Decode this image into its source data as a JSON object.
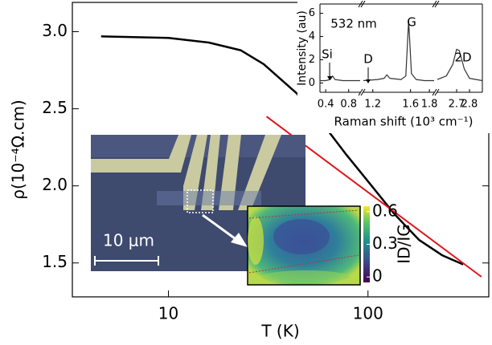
{
  "chart_data": {
    "type": "line",
    "y_label": "ρ(10⁻⁴Ω.cm)",
    "x_label": "T (K)",
    "xscale": "log",
    "xlim": [
      3.3,
      403
    ],
    "xticks": [
      10,
      100
    ],
    "ylim": [
      1.28,
      3.19
    ],
    "yticks": [
      {
        "value": 1.5,
        "label": "1.5"
      },
      {
        "value": 2,
        "label": "2.0"
      },
      2.5,
      {
        "value": 3,
        "label": "3.0"
      }
    ],
    "series": [
      {
        "color": "#000000",
        "x": [
          4.6,
          10,
          15.9,
          23,
          30,
          44,
          58,
          77,
          100,
          135,
          180,
          235,
          300
        ],
        "values": [
          2.97,
          2.96,
          2.93,
          2.88,
          2.79,
          2.6,
          2.42,
          2.21,
          2.03,
          1.82,
          1.65,
          1.55,
          1.49
        ]
      },
      {
        "color": "#e0141e",
        "x": [
          31,
          370
        ],
        "values": [
          2.45,
          1.41
        ]
      }
    ],
    "raman_inset": {
      "type": "line",
      "x_label": "Raman shift (10³ cm⁻¹)",
      "y_label": "Intensity (au)",
      "ylim": [
        -0.8,
        6.8
      ],
      "yticks": [
        0,
        2,
        4,
        6
      ],
      "color": "#333333",
      "segments": [
        {
          "xlim": [
            0.3,
            1.0
          ],
          "xticks": [
            0.4,
            0.8
          ],
          "x": [
            0.3,
            0.4,
            0.48,
            0.52,
            0.56,
            0.7,
            0.9,
            1.0
          ],
          "values": [
            0.2,
            0.2,
            0.3,
            0.6,
            0.3,
            0.2,
            0.2,
            0.2
          ]
        },
        {
          "xlim": [
            1.1,
            1.85
          ],
          "xticks": [
            1.2,
            1.6,
            1.8
          ],
          "x": [
            1.1,
            1.25,
            1.32,
            1.35,
            1.38,
            1.5,
            1.55,
            1.58,
            1.61,
            1.66,
            1.75,
            1.85
          ],
          "values": [
            0.2,
            0.3,
            0.4,
            0.7,
            0.4,
            0.3,
            0.6,
            5.4,
            0.8,
            0.3,
            0.2,
            0.2
          ]
        },
        {
          "xlim": [
            2.55,
            2.9
          ],
          "xticks": [
            2.7,
            2.8
          ],
          "x": [
            2.55,
            2.62,
            2.67,
            2.7,
            2.72,
            2.76,
            2.8,
            2.9
          ],
          "values": [
            0.3,
            0.6,
            1.6,
            2.9,
            2.8,
            1.2,
            0.4,
            0.2
          ]
        }
      ],
      "annotations": [
        "532 nm",
        "Si",
        "D",
        "G",
        "2D"
      ]
    },
    "map_inset": {
      "scale_label": "10 μm",
      "colorbar": {
        "label": "ID/IG",
        "lim": [
          -0.05,
          0.65
        ],
        "ticks": [
          0,
          0.3,
          0.6
        ]
      }
    }
  }
}
